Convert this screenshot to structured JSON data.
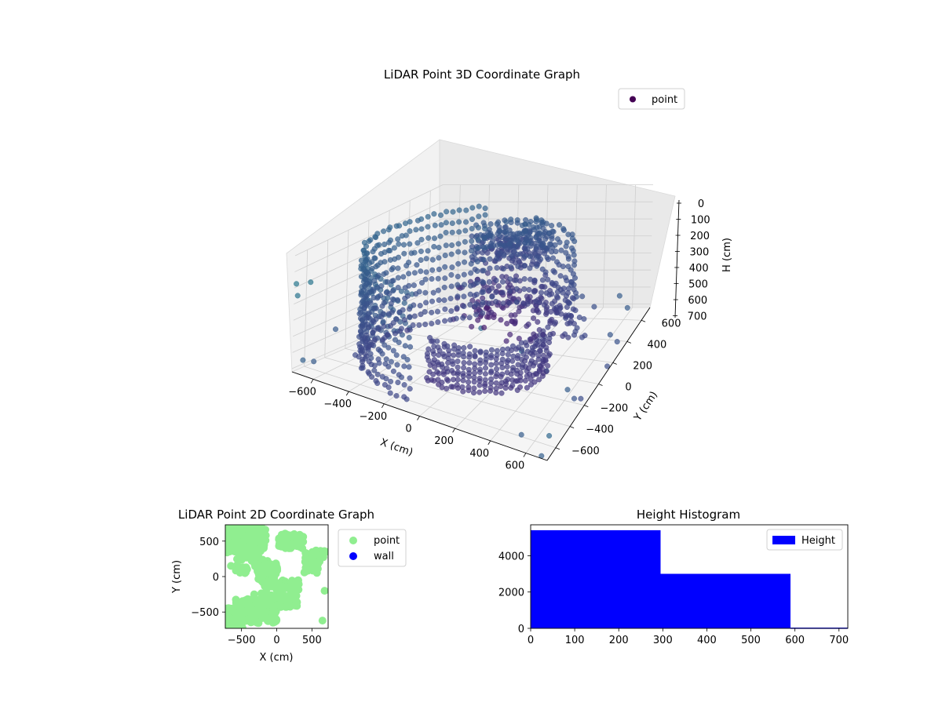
{
  "chart_data": [
    {
      "type": "scatter",
      "projection": "3d",
      "title": "LiDAR Point 3D Coordinate Graph",
      "xlabel": "X (cm)",
      "ylabel": "Y (cm)",
      "zlabel": "H (cm)",
      "xlim": [
        -720,
        720
      ],
      "ylim": [
        -720,
        720
      ],
      "zlim": [
        720,
        0
      ],
      "zinverted": true,
      "xticks": [
        -600,
        -400,
        -200,
        0,
        200,
        400,
        600
      ],
      "yticks": [
        -600,
        -400,
        -200,
        0,
        200,
        400,
        600
      ],
      "zticks": [
        0,
        100,
        200,
        300,
        400,
        500,
        600,
        700
      ],
      "grid": true,
      "legend": {
        "position": "top-right",
        "entries": [
          "point"
        ]
      },
      "colormap": "viridis",
      "point_color": "#440154",
      "series": [
        {
          "name": "point",
          "structures": [
            {
              "kind": "arc",
              "radius": 640,
              "a0": 120,
              "a1": 260,
              "z0": 60,
              "z1": 700,
              "rings": 11,
              "steps": 44
            },
            {
              "kind": "arc",
              "radius": 420,
              "a0": 255,
              "a1": 355,
              "z0": 420,
              "z1": 680,
              "rings": 10,
              "steps": 26
            },
            {
              "kind": "arc",
              "radius": 520,
              "a0": 40,
              "a1": 125,
              "z0": 120,
              "z1": 600,
              "rings": 8,
              "steps": 20
            },
            {
              "kind": "blob",
              "cx": -50,
              "cy": 420,
              "rx": 260,
              "ry": 180,
              "z0": 120,
              "z1": 300,
              "count": 220
            },
            {
              "kind": "blob",
              "cx": 150,
              "cy": 150,
              "rx": 420,
              "ry": 180,
              "z0": 300,
              "z1": 560,
              "count": 180
            }
          ],
          "outliers": [
            [
              -700,
              -650,
              660
            ],
            [
              -690,
              -560,
              690
            ],
            [
              -650,
              -420,
              520
            ],
            [
              -600,
              -300,
              700
            ],
            [
              -550,
              -220,
              650
            ],
            [
              -500,
              -150,
              600
            ],
            [
              -420,
              -80,
              580
            ],
            [
              -700,
              -720,
              240
            ],
            [
              -720,
              -700,
              180
            ],
            [
              -640,
              -700,
              140
            ],
            [
              300,
              -650,
              100
            ],
            [
              520,
              -620,
              180
            ],
            [
              640,
              -560,
              300
            ],
            [
              700,
              -400,
              500
            ],
            [
              700,
              -300,
              620
            ],
            [
              690,
              -180,
              700
            ],
            [
              720,
              120,
              690
            ],
            [
              720,
              150,
              520
            ],
            [
              700,
              300,
              660
            ],
            [
              600,
              650,
              680
            ],
            [
              520,
              700,
              640
            ],
            [
              400,
              600,
              650
            ],
            [
              -300,
              620,
              620
            ],
            [
              -150,
              650,
              660
            ],
            [
              720,
              -700,
              580
            ],
            [
              680,
              -700,
              720
            ],
            [
              560,
              -690,
              640
            ]
          ]
        }
      ]
    },
    {
      "type": "scatter",
      "title": "LiDAR Point 2D Coordinate Graph",
      "xlabel": "X (cm)",
      "ylabel": "Y (cm)",
      "xlim": [
        -730,
        730
      ],
      "ylim": [
        -730,
        730
      ],
      "xticks": [
        -500,
        0,
        500
      ],
      "yticks": [
        -500,
        0,
        500
      ],
      "grid": false,
      "legend": {
        "position": "outside-right",
        "entries": [
          "point",
          "wall"
        ]
      },
      "series": [
        {
          "name": "point",
          "color": "#90ee90",
          "regions": [
            [
              -560,
              620,
              700,
              560
            ],
            [
              -380,
              540,
              450,
              280
            ],
            [
              -420,
              350,
              300,
              260
            ],
            [
              -230,
              180,
              200,
              220
            ],
            [
              -120,
              60,
              300,
              260
            ],
            [
              60,
              -120,
              520,
              140
            ],
            [
              -420,
              -380,
              340,
              130
            ],
            [
              -350,
              -560,
              700,
              190
            ],
            [
              30,
              -330,
              560,
              200
            ],
            [
              500,
              200,
              220,
              300
            ],
            [
              -600,
              -650,
              260,
              150
            ],
            [
              200,
              500,
              360,
              220
            ],
            [
              -500,
              100,
              180,
              120
            ],
            [
              620,
              320,
              130,
              100
            ],
            [
              -660,
              -500,
              120,
              120
            ]
          ],
          "sparse": [
            [
              -650,
              150
            ],
            [
              -620,
              400
            ],
            [
              -700,
              -460
            ],
            [
              -580,
              -520
            ],
            [
              -320,
              -250
            ],
            [
              700,
              350
            ],
            [
              680,
              -200
            ],
            [
              650,
              -620
            ],
            [
              -620,
              660
            ],
            [
              -720,
              500
            ]
          ]
        },
        {
          "name": "wall",
          "color": "#0000ff",
          "points": []
        }
      ]
    },
    {
      "type": "bar",
      "variant": "histogram",
      "title": "Height Histogram",
      "xlim": [
        0,
        720
      ],
      "ylim": [
        0,
        5700
      ],
      "xticks": [
        0,
        100,
        200,
        300,
        400,
        500,
        600,
        700
      ],
      "yticks": [
        0,
        2000,
        4000
      ],
      "grid": false,
      "legend": {
        "position": "top-right",
        "entries": [
          "Height"
        ]
      },
      "series": [
        {
          "name": "Height",
          "color": "#0000ff",
          "bins": [
            [
              0,
              295,
              5400
            ],
            [
              295,
              590,
              3000
            ],
            [
              590,
              720,
              40
            ]
          ]
        }
      ]
    }
  ]
}
